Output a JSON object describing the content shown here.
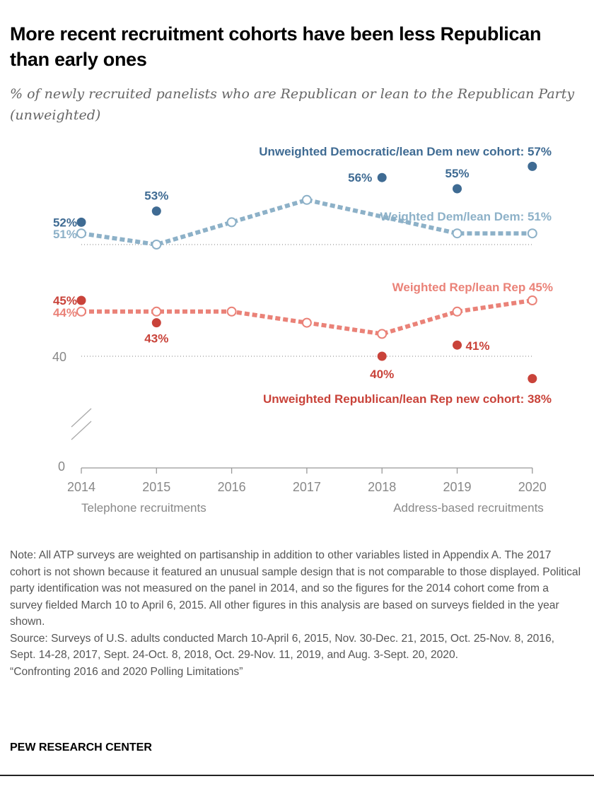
{
  "title": "More recent recruitment cohorts have been less Republican than early ones",
  "subtitle": "% of newly recruited panelists who are Republican or lean to the Republican Party (unweighted)",
  "chart_data": {
    "type": "line",
    "categories": [
      "2014",
      "2015",
      "2016",
      "2017",
      "2018",
      "2019",
      "2020"
    ],
    "y_ticks": [
      "0",
      "40"
    ],
    "y_break": true,
    "reference_lines": [
      40,
      50
    ],
    "x_group_labels": [
      "Telephone recruitments",
      "Address-based recruitments"
    ],
    "series": [
      {
        "name": "Unweighted Democratic/lean Dem new cohort: 57%",
        "color": "#3f6b93",
        "marker": "filled",
        "values": [
          52,
          53,
          null,
          null,
          56,
          55,
          57
        ],
        "labels": [
          "52%",
          "53%",
          null,
          null,
          "56%",
          "55%",
          null
        ]
      },
      {
        "name": "Weighted Dem/lean Dem: 51%",
        "color": "#8db1c8",
        "marker": "open",
        "values": [
          51,
          50,
          52,
          54,
          null,
          51,
          51
        ],
        "labels": [
          "51%",
          null,
          null,
          null,
          null,
          null,
          null
        ]
      },
      {
        "name": "Weighted Rep/lean Rep 45%",
        "color": "#ea8278",
        "marker": "open",
        "values": [
          44,
          44,
          44,
          43,
          42,
          44,
          45
        ],
        "labels": [
          "44%",
          null,
          null,
          null,
          null,
          null,
          null
        ]
      },
      {
        "name": "Unweighted Republican/lean Rep new cohort: 38%",
        "color": "#c9433a",
        "marker": "filled",
        "values": [
          45,
          43,
          null,
          null,
          40,
          41,
          38
        ],
        "labels": [
          "45%",
          "43%",
          null,
          null,
          "40%",
          "41%",
          null
        ]
      }
    ]
  },
  "note": "Note: All ATP surveys are weighted on partisanship in addition to other variables listed in Appendix A. The 2017 cohort is not shown because it featured an unusual sample design that is not comparable to those displayed. Political party identification was not measured on the panel in 2014, and so the figures for the 2014 cohort come from a survey fielded March 10 to April 6, 2015. All other figures in this analysis are based on surveys fielded in the year shown.",
  "source": "Source: Surveys of U.S. adults conducted March 10-April 6, 2015, Nov. 30-Dec. 21, 2015, Oct. 25-Nov. 8, 2016, Sept. 14-28, 2017, Sept. 24-Oct. 8, 2018, Oct. 29-Nov. 11, 2019, and Aug. 3-Sept. 20, 2020.",
  "report": "“Confronting 2016 and 2020 Polling Limitations”",
  "brand": "PEW RESEARCH CENTER"
}
